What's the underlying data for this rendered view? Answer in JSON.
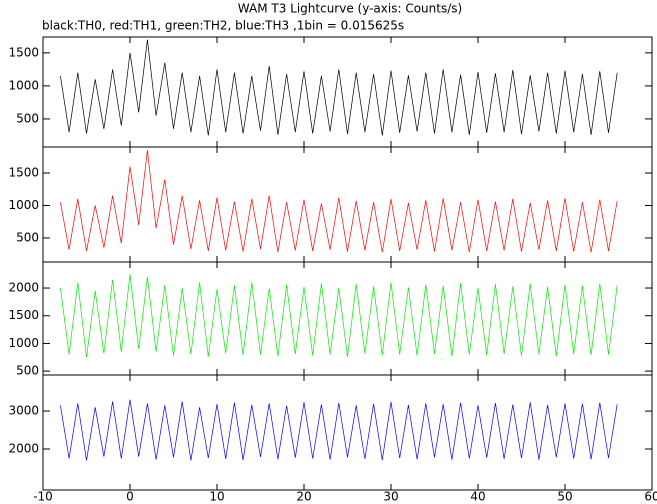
{
  "chart_data": [
    {
      "type": "line",
      "title": "WAM T3 Lightcurve (y-axis: Counts/s)",
      "subtitle": "black:TH0, red:TH1, green:TH2, blue:TH3 ,1bin = 0.015625s",
      "color": "#000000",
      "xlim": [
        -10,
        60
      ],
      "ylim": [
        75,
        1740
      ],
      "yticks": [
        500,
        1000,
        1500
      ],
      "x": [
        -8,
        -7,
        -6,
        -5,
        -4,
        -3,
        -2,
        -1,
        0,
        1,
        2,
        3,
        4,
        5,
        6,
        7,
        8,
        9,
        10,
        11,
        12,
        13,
        14,
        15,
        16,
        17,
        18,
        19,
        20,
        21,
        22,
        23,
        24,
        25,
        26,
        27,
        28,
        29,
        30,
        31,
        32,
        33,
        34,
        35,
        36,
        37,
        38,
        39,
        40,
        41,
        42,
        43,
        44,
        45,
        46,
        47,
        48,
        49,
        50,
        51,
        52,
        53,
        54,
        55,
        56
      ],
      "values": [
        1150,
        300,
        1200,
        280,
        1100,
        350,
        1250,
        400,
        1500,
        600,
        1700,
        550,
        1350,
        350,
        1200,
        300,
        1150,
        250,
        1250,
        300,
        1200,
        280,
        1150,
        320,
        1300,
        260,
        1180,
        300,
        1220,
        280,
        1150,
        310,
        1250,
        270,
        1200,
        300,
        1180,
        250,
        1230,
        290,
        1160,
        310,
        1200,
        280,
        1250,
        300,
        1170,
        260,
        1210,
        290,
        1190,
        300,
        1240,
        270,
        1160,
        310,
        1200,
        280,
        1230,
        300,
        1180,
        260,
        1220,
        290,
        1200
      ]
    },
    {
      "type": "line",
      "color": "#ff0000",
      "xlim": [
        -10,
        60
      ],
      "ylim": [
        130,
        1900
      ],
      "yticks": [
        500,
        1000,
        1500
      ],
      "x": [
        -8,
        -7,
        -6,
        -5,
        -4,
        -3,
        -2,
        -1,
        0,
        1,
        2,
        3,
        4,
        5,
        6,
        7,
        8,
        9,
        10,
        11,
        12,
        13,
        14,
        15,
        16,
        17,
        18,
        19,
        20,
        21,
        22,
        23,
        24,
        25,
        26,
        27,
        28,
        29,
        30,
        31,
        32,
        33,
        34,
        35,
        36,
        37,
        38,
        39,
        40,
        41,
        42,
        43,
        44,
        45,
        46,
        47,
        48,
        49,
        50,
        51,
        52,
        53,
        54,
        55,
        56
      ],
      "values": [
        1050,
        320,
        1100,
        300,
        1000,
        350,
        1150,
        420,
        1600,
        700,
        1850,
        650,
        1400,
        400,
        1150,
        330,
        1080,
        300,
        1120,
        310,
        1060,
        290,
        1100,
        330,
        1150,
        280,
        1050,
        310,
        1090,
        300,
        1030,
        320,
        1120,
        290,
        1070,
        310,
        1050,
        280,
        1100,
        300,
        1040,
        320,
        1080,
        290,
        1110,
        310,
        1050,
        280,
        1090,
        300,
        1060,
        310,
        1100,
        290,
        1040,
        320,
        1080,
        300,
        1110,
        290,
        1050,
        280,
        1090,
        300,
        1070
      ]
    },
    {
      "type": "line",
      "color": "#00ee00",
      "xlim": [
        -10,
        60
      ],
      "ylim": [
        430,
        2470
      ],
      "yticks": [
        500,
        1000,
        1500,
        2000
      ],
      "x": [
        -8,
        -7,
        -6,
        -5,
        -4,
        -3,
        -2,
        -1,
        0,
        1,
        2,
        3,
        4,
        5,
        6,
        7,
        8,
        9,
        10,
        11,
        12,
        13,
        14,
        15,
        16,
        17,
        18,
        19,
        20,
        21,
        22,
        23,
        24,
        25,
        26,
        27,
        28,
        29,
        30,
        31,
        32,
        33,
        34,
        35,
        36,
        37,
        38,
        39,
        40,
        41,
        42,
        43,
        44,
        45,
        46,
        47,
        48,
        49,
        50,
        51,
        52,
        53,
        54,
        55,
        56
      ],
      "values": [
        2000,
        800,
        2100,
        750,
        1950,
        820,
        2150,
        850,
        2250,
        900,
        2200,
        850,
        2050,
        780,
        2000,
        800,
        2100,
        760,
        1980,
        820,
        2050,
        790,
        2100,
        800,
        1990,
        770,
        2060,
        810,
        2020,
        780,
        2080,
        800,
        2000,
        760,
        2070,
        820,
        2030,
        790,
        2100,
        800,
        2010,
        780,
        2060,
        810,
        2040,
        770,
        2090,
        800,
        2000,
        790,
        2070,
        810,
        2030,
        780,
        2080,
        800,
        2020,
        770,
        2060,
        810,
        2040,
        790,
        2080,
        800,
        2050
      ]
    },
    {
      "type": "line",
      "color": "#0000ff",
      "xlim": [
        -10,
        60
      ],
      "ylim": [
        920,
        3950
      ],
      "yticks": [
        2000,
        3000
      ],
      "xticks": [
        -10,
        0,
        10,
        20,
        30,
        40,
        50,
        60
      ],
      "x": [
        -8,
        -7,
        -6,
        -5,
        -4,
        -3,
        -2,
        -1,
        0,
        1,
        2,
        3,
        4,
        5,
        6,
        7,
        8,
        9,
        10,
        11,
        12,
        13,
        14,
        15,
        16,
        17,
        18,
        19,
        20,
        21,
        22,
        23,
        24,
        25,
        26,
        27,
        28,
        29,
        30,
        31,
        32,
        33,
        34,
        35,
        36,
        37,
        38,
        39,
        40,
        41,
        42,
        43,
        44,
        45,
        46,
        47,
        48,
        49,
        50,
        51,
        52,
        53,
        54,
        55,
        56
      ],
      "values": [
        3150,
        1750,
        3200,
        1700,
        3100,
        1800,
        3250,
        1750,
        3300,
        1800,
        3200,
        1720,
        3150,
        1780,
        3250,
        1700,
        3100,
        1760,
        3180,
        1740,
        3220,
        1710,
        3160,
        1790,
        3200,
        1730,
        3140,
        1770,
        3230,
        1750,
        3170,
        1720,
        3210,
        1780,
        3150,
        1740,
        3190,
        1710,
        3240,
        1760,
        3160,
        1730,
        3200,
        1780,
        3180,
        1720,
        3220,
        1750,
        3150,
        1770,
        3210,
        1740,
        3170,
        1760,
        3230,
        1720,
        3160,
        1780,
        3200,
        1750,
        3190,
        1730,
        3220,
        1760,
        3180
      ]
    }
  ]
}
